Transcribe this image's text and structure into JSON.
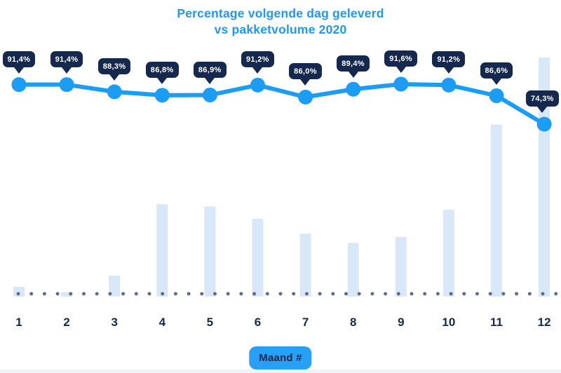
{
  "title": {
    "line1": "Percentage volgende dag geleverd",
    "line2": "vs pakketvolume 2020"
  },
  "x_axis": {
    "label": "Maand #",
    "ticks": [
      "1",
      "2",
      "3",
      "4",
      "5",
      "6",
      "7",
      "8",
      "9",
      "10",
      "11",
      "12"
    ]
  },
  "chart_data": {
    "type": "line",
    "title": "Percentage volgende dag geleverd vs pakketvolume 2020",
    "xlabel": "Maand #",
    "ylabel": "",
    "categories": [
      "1",
      "2",
      "3",
      "4",
      "5",
      "6",
      "7",
      "8",
      "9",
      "10",
      "11",
      "12"
    ],
    "series": [
      {
        "name": "Percentage volgende dag geleverd",
        "type": "line",
        "unit": "%",
        "values": [
          91.4,
          91.4,
          88.3,
          86.8,
          86.9,
          91.2,
          86.0,
          89.4,
          91.6,
          91.2,
          86.6,
          74.3
        ],
        "point_labels": [
          "91,4%",
          "91,4%",
          "88,3%",
          "86,8%",
          "86,9%",
          "91,2%",
          "86,0%",
          "89,4%",
          "91,6%",
          "91,2%",
          "86,6%",
          "74,3%"
        ]
      },
      {
        "name": "Pakketvolume (relatief, geschat uit staafhoogte)",
        "type": "bar",
        "unit": "relative_0_100",
        "values": [
          4.1,
          1.8,
          8.8,
          38.6,
          37.7,
          32.5,
          26.3,
          22.5,
          24.9,
          36.3,
          71.9,
          100
        ]
      }
    ],
    "layout_hints": {
      "y_axis_visible": false,
      "grid": false,
      "legend": "none",
      "dotted_baseline": true,
      "point_labels_style": "dark navy tooltip bubble above each point",
      "pct_range_shown": [
        74.3,
        91.6
      ]
    }
  },
  "colors": {
    "title_blue": "#2196f3",
    "line_blue": "#1a9cf7",
    "tooltip_navy": "#15294e",
    "bar_fill": "#d9e8f8",
    "baseline_dot": "#5b6e92",
    "pill_blue": "#29a0f7"
  }
}
